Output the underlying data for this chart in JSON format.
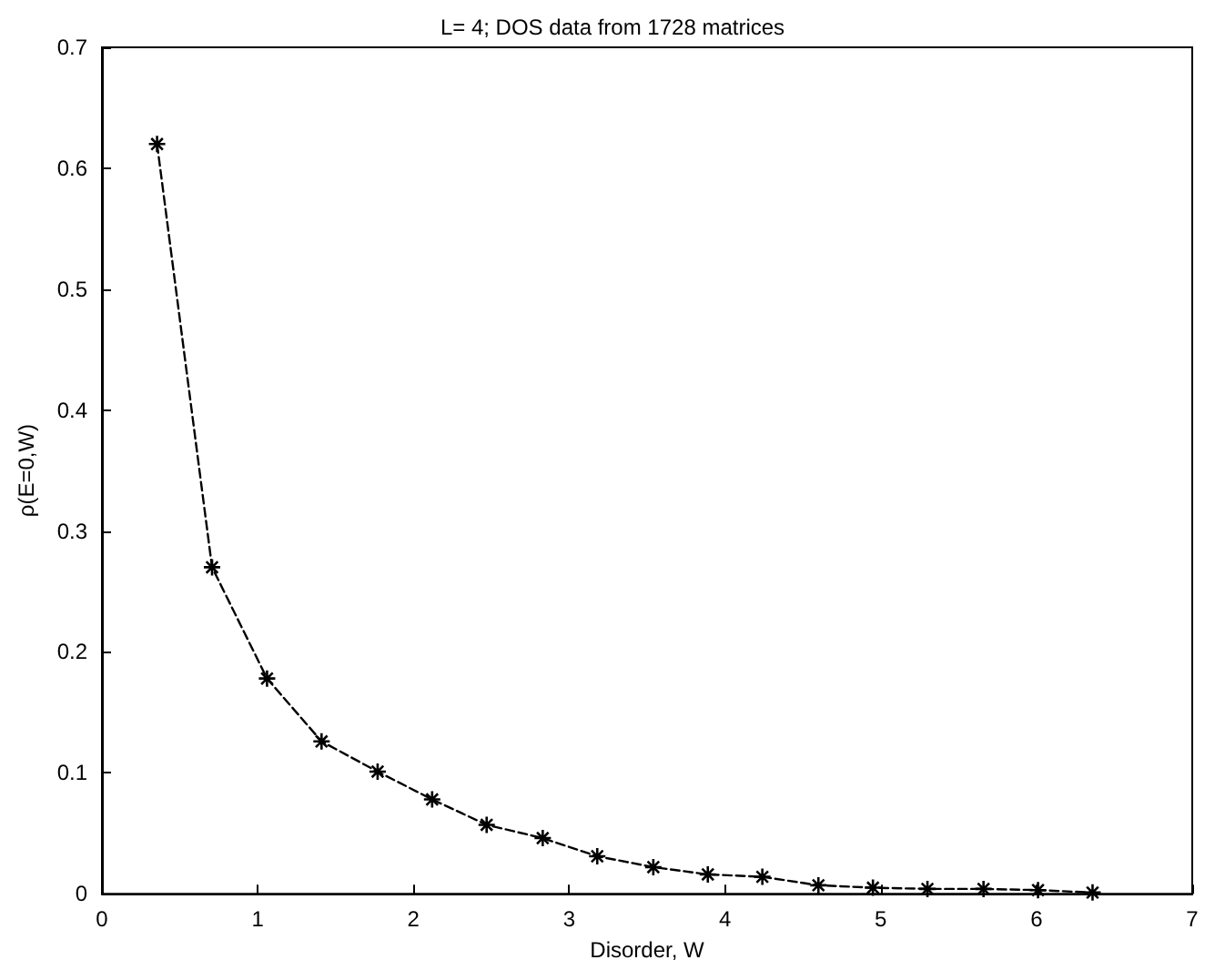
{
  "chart_data": {
    "type": "line",
    "title": "L= 4; DOS data from 1728 matrices",
    "xlabel": "Disorder, W",
    "ylabel": "ρ(E=0,W)",
    "x": [
      0.354,
      0.707,
      1.06,
      1.41,
      1.77,
      2.12,
      2.47,
      2.83,
      3.18,
      3.54,
      3.89,
      4.24,
      4.6,
      4.95,
      5.3,
      5.66,
      6.01,
      6.36
    ],
    "series": [
      {
        "color": "#000000",
        "values": [
          0.62,
          0.27,
          0.178,
          0.126,
          0.101,
          0.078,
          0.057,
          0.046,
          0.031,
          0.022,
          0.016,
          0.014,
          0.007,
          0.005,
          0.004,
          0.004,
          0.003,
          0.001
        ]
      }
    ],
    "xlim": [
      0,
      7
    ],
    "xticks": [
      0,
      1,
      2,
      3,
      4,
      5,
      6,
      7
    ],
    "ylim": [
      0,
      0.7
    ],
    "yticks": [
      0,
      0.1,
      0.2,
      0.3,
      0.4,
      0.5,
      0.6,
      0.7
    ],
    "grid": false,
    "marker": "cross",
    "line_style": "dashed"
  }
}
